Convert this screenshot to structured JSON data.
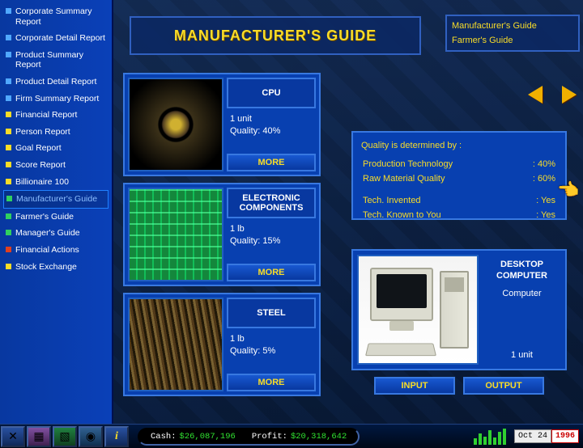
{
  "title": "MANUFACTURER'S GUIDE",
  "sidebar": {
    "items": [
      {
        "label": "Corporate Summary Report",
        "color": "#50a8ff",
        "selected": false
      },
      {
        "label": "Corporate Detail Report",
        "color": "#50a8ff",
        "selected": false
      },
      {
        "label": "Product Summary Report",
        "color": "#50a8ff",
        "selected": false
      },
      {
        "label": "Product Detail Report",
        "color": "#50a8ff",
        "selected": false
      },
      {
        "label": "Firm Summary Report",
        "color": "#50a8ff",
        "selected": false
      },
      {
        "label": "Financial Report",
        "color": "#f8dc28",
        "selected": false
      },
      {
        "label": "Person Report",
        "color": "#f8dc28",
        "selected": false
      },
      {
        "label": "Goal Report",
        "color": "#f8dc28",
        "selected": false
      },
      {
        "label": "Score Report",
        "color": "#f8dc28",
        "selected": false
      },
      {
        "label": "Billionaire 100",
        "color": "#f8dc28",
        "selected": false
      },
      {
        "label": "Manufacturer's Guide",
        "color": "#30d060",
        "selected": true
      },
      {
        "label": "Farmer's Guide",
        "color": "#30d060",
        "selected": false
      },
      {
        "label": "Manager's Guide",
        "color": "#30d060",
        "selected": false
      },
      {
        "label": "Financial Actions",
        "color": "#e04020",
        "selected": false
      },
      {
        "label": "Stock Exchange",
        "color": "#f8dc28",
        "selected": false
      }
    ]
  },
  "top_right": {
    "options": [
      "Manufacturer's Guide",
      "Farmer's Guide"
    ]
  },
  "ingredients": [
    {
      "name": "CPU",
      "unit": "1 unit",
      "quality": "Quality: 40%",
      "img": "cpu",
      "more": "MORE"
    },
    {
      "name": "ELECTRONIC COMPONENTS",
      "unit": "1 lb",
      "quality": "Quality: 15%",
      "img": "elec",
      "more": "MORE"
    },
    {
      "name": "STEEL",
      "unit": "1 lb",
      "quality": "Quality: 5%",
      "img": "steel",
      "more": "MORE"
    }
  ],
  "quality_panel": {
    "heading": "Quality is determined by :",
    "rows": [
      {
        "label": "Production Technology",
        "value": ": 40%"
      },
      {
        "label": "Raw Material Quality",
        "value": ": 60%"
      }
    ],
    "rows2": [
      {
        "label": "Tech. Invented",
        "value": ": Yes"
      },
      {
        "label": "Tech. Known to You",
        "value": ": Yes"
      }
    ]
  },
  "product": {
    "name": "DESKTOP COMPUTER",
    "category": "Computer",
    "unit": "1 unit"
  },
  "io": {
    "input": "INPUT",
    "output": "OUTPUT"
  },
  "status_bar": {
    "cash_label": "Cash:",
    "cash_value": "$26,087,196",
    "profit_label": "Profit:",
    "profit_value": "$20,318,642",
    "chart_bars": [
      8,
      14,
      10,
      18,
      9,
      16,
      20
    ],
    "date_md": "Oct 24",
    "date_yr": "1996"
  },
  "colors": {
    "panel_border": "#3878e0",
    "panel_bg": "#0840b0",
    "accent_yellow": "#f8dc28",
    "sidebar_bg": "#0a40b8"
  }
}
